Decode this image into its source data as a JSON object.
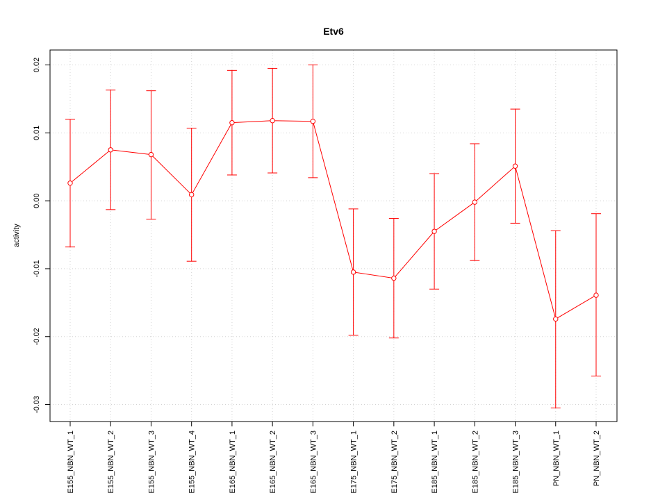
{
  "chart_data": {
    "type": "line",
    "title": "Etv6",
    "xlabel": "",
    "ylabel": "activity",
    "ylim": [
      -0.0325,
      0.0222
    ],
    "y_ticks": [
      -0.03,
      -0.02,
      -0.01,
      0.0,
      0.01,
      0.02
    ],
    "y_tick_labels": [
      "-0.03",
      "-0.02",
      "-0.01",
      "0.00",
      "0.01",
      "0.02"
    ],
    "grid": true,
    "categories": [
      "E155_NBN_WT_1",
      "E155_NBN_WT_2",
      "E155_NBN_WT_3",
      "E155_NBN_WT_4",
      "E165_NBN_WT_1",
      "E165_NBN_WT_2",
      "E165_NBN_WT_3",
      "E175_NBN_WT_1",
      "E175_NBN_WT_2",
      "E185_NBN_WT_1",
      "E185_NBN_WT_2",
      "E185_NBN_WT_3",
      "PN_NBN_WT_1",
      "PN_NBN_WT_2"
    ],
    "series": [
      {
        "color": "#ff0000",
        "values": [
          0.0026,
          0.0075,
          0.0068,
          0.0009,
          0.0115,
          0.0118,
          0.0117,
          -0.0105,
          -0.0114,
          -0.0045,
          -0.0002,
          0.0051,
          -0.0174,
          -0.0139
        ],
        "upper": [
          0.012,
          0.0163,
          0.0162,
          0.0107,
          0.0192,
          0.0195,
          0.02,
          -0.0012,
          -0.0026,
          0.004,
          0.0084,
          0.0135,
          -0.0044,
          -0.0019
        ],
        "lower": [
          -0.0068,
          -0.0013,
          -0.0027,
          -0.0089,
          0.0038,
          0.0041,
          0.0034,
          -0.0198,
          -0.0202,
          -0.013,
          -0.0088,
          -0.0033,
          -0.0305,
          -0.0258
        ]
      }
    ]
  }
}
